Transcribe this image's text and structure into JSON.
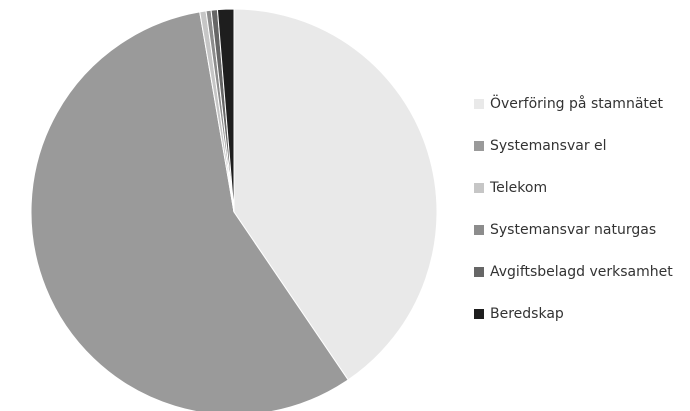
{
  "chart_data": {
    "type": "pie",
    "title": "",
    "categories": [
      "Överföring på stamnätet",
      "Systemansvar el",
      "Telekom",
      "Systemansvar naturgas",
      "Avgiftsbelagd verksamhet",
      "Beredskap"
    ],
    "values": [
      40.5,
      56.8,
      0.5,
      0.4,
      0.5,
      1.3
    ],
    "colors": [
      "#e9e9e9",
      "#9a9a9a",
      "#c6c6c6",
      "#8c8c8c",
      "#666666",
      "#1e1e1e"
    ],
    "start_angle_deg": 0,
    "direction": "clockwise",
    "legend_position": "right"
  }
}
